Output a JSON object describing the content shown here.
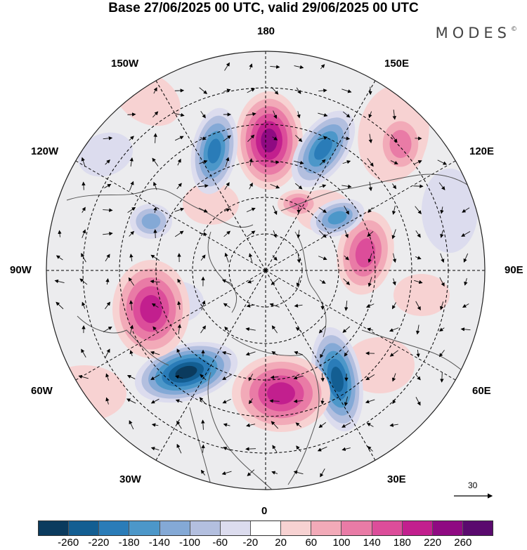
{
  "title": "Base 27/06/2025 00 UTC, valid 29/06/2025 00 UTC",
  "brand": {
    "name": "MODES",
    "mark": "©"
  },
  "longitude_labels": {
    "top": "180",
    "bottom": "0",
    "left": "90W",
    "right": "90E",
    "upper_left_inner": "150W",
    "upper_right_inner": "150E",
    "upper_left_outer": "120W",
    "upper_right_outer": "120E",
    "lower_left_outer": "60W",
    "lower_right_outer": "60E",
    "lower_left_inner": "30W",
    "lower_right_inner": "30E"
  },
  "reference_vector": {
    "label": "30"
  },
  "colorbar": {
    "colors": [
      "#0b3b5e",
      "#135e92",
      "#2a7cb8",
      "#4c97c9",
      "#84a9d6",
      "#b3bfdf",
      "#dcdcee",
      "#ffffff",
      "#f7d2d2",
      "#f2aab8",
      "#e97ba6",
      "#dc4d9a",
      "#c21f8e",
      "#8f0a82",
      "#5a0a6e"
    ],
    "ticks": [
      "-260",
      "-220",
      "-180",
      "-140",
      "-100",
      "-60",
      "-20",
      "20",
      "60",
      "100",
      "140",
      "180",
      "220",
      "260"
    ]
  }
}
